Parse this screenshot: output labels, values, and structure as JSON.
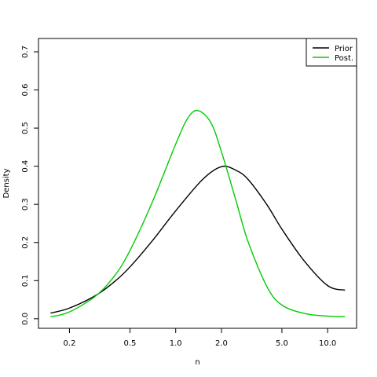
{
  "chart_data": {
    "type": "line",
    "title": "",
    "xlabel": "n",
    "ylabel": "Density",
    "x_scale": "log",
    "xlim": [
      0.125,
      15.5
    ],
    "ylim": [
      -0.025,
      0.735
    ],
    "x_ticks": [
      0.2,
      0.5,
      1.0,
      2.0,
      5.0,
      10.0
    ],
    "x_tick_labels": [
      "0.2",
      "0.5",
      "1.0",
      "2.0",
      "5.0",
      "10.0"
    ],
    "y_ticks": [
      0.0,
      0.1,
      0.2,
      0.3,
      0.4,
      0.5,
      0.6,
      0.7
    ],
    "y_tick_labels": [
      "0.0",
      "0.1",
      "0.2",
      "0.3",
      "0.4",
      "0.5",
      "0.6",
      "0.7"
    ],
    "grid": false,
    "legend_position": "top-right",
    "series": [
      {
        "name": "Prior",
        "color": "#000000",
        "x": [
          0.15,
          0.2,
          0.3,
          0.4,
          0.5,
          0.7,
          1.0,
          1.5,
          2.0,
          2.5,
          3.0,
          4.0,
          5.0,
          7.0,
          10.0,
          13.0
        ],
        "y": [
          0.015,
          0.028,
          0.062,
          0.099,
          0.136,
          0.204,
          0.283,
          0.365,
          0.399,
          0.389,
          0.365,
          0.298,
          0.235,
          0.152,
          0.087,
          0.075
        ]
      },
      {
        "name": "Post.",
        "color": "#00cc00",
        "x": [
          0.15,
          0.2,
          0.3,
          0.4,
          0.5,
          0.7,
          1.0,
          1.2,
          1.4,
          1.7,
          2.0,
          2.5,
          3.0,
          4.0,
          5.0,
          7.0,
          10.0,
          13.0
        ],
        "y": [
          0.005,
          0.018,
          0.061,
          0.115,
          0.179,
          0.305,
          0.458,
          0.526,
          0.546,
          0.515,
          0.438,
          0.308,
          0.201,
          0.083,
          0.036,
          0.014,
          0.007,
          0.006
        ]
      }
    ]
  }
}
